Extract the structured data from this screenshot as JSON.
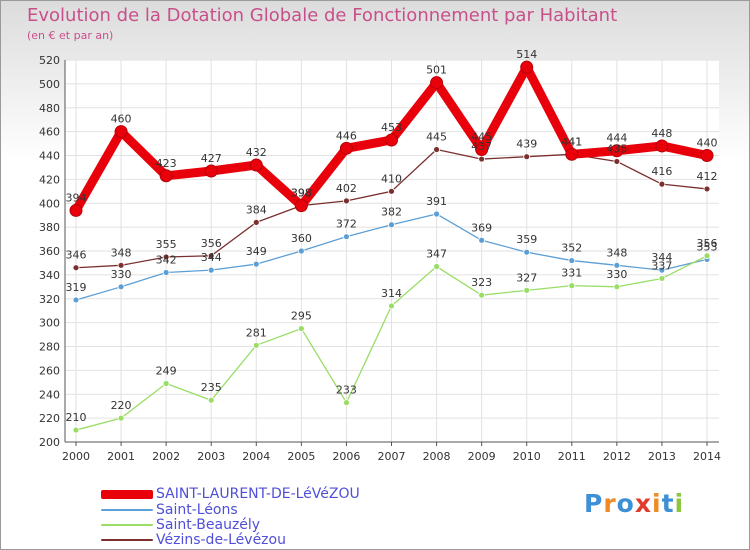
{
  "header": {
    "title": "Evolution de la Dotation Globale de Fonctionnement par Habitant",
    "subtitle": "(en € et par an)"
  },
  "logo": {
    "text": "Proxiti",
    "colors": [
      "#3d8fd6",
      "#f08a24",
      "#3d8fd6",
      "#e33a2d",
      "#f08a24",
      "#3d8fd6",
      "#8cc63f"
    ]
  },
  "chart_data": {
    "type": "line",
    "x": [
      "2000",
      "2001",
      "2002",
      "2003",
      "2004",
      "2005",
      "2006",
      "2007",
      "2008",
      "2009",
      "2010",
      "2011",
      "2012",
      "2013",
      "2014"
    ],
    "ylim": [
      200,
      520
    ],
    "yticks": [
      200,
      220,
      240,
      260,
      280,
      300,
      320,
      340,
      360,
      380,
      400,
      420,
      440,
      460,
      480,
      500,
      520
    ],
    "grid": true,
    "legend": "bottom-left",
    "series": [
      {
        "name": "SAINT-LAURENT-DE-LéVéZOU",
        "color": "#e8000b",
        "width": 9,
        "values": [
          394,
          460,
          423,
          427,
          432,
          398,
          446,
          453,
          501,
          445,
          514,
          441,
          444,
          448,
          440
        ]
      },
      {
        "name": "Saint-Léons",
        "color": "#5d9fd5",
        "width": 1.3,
        "values": [
          319,
          330,
          342,
          344,
          349,
          360,
          372,
          382,
          391,
          369,
          359,
          352,
          348,
          344,
          353
        ]
      },
      {
        "name": "Saint-Beauzély",
        "color": "#99dd66",
        "width": 1.3,
        "values": [
          210,
          220,
          249,
          235,
          281,
          295,
          233,
          314,
          347,
          323,
          327,
          331,
          330,
          337,
          356
        ]
      },
      {
        "name": "Vézins-de-Lévézou",
        "color": "#7b2f2f",
        "width": 1.3,
        "values": [
          346,
          348,
          355,
          356,
          384,
          398,
          402,
          410,
          445,
          437,
          439,
          441,
          435,
          416,
          412
        ]
      }
    ]
  }
}
